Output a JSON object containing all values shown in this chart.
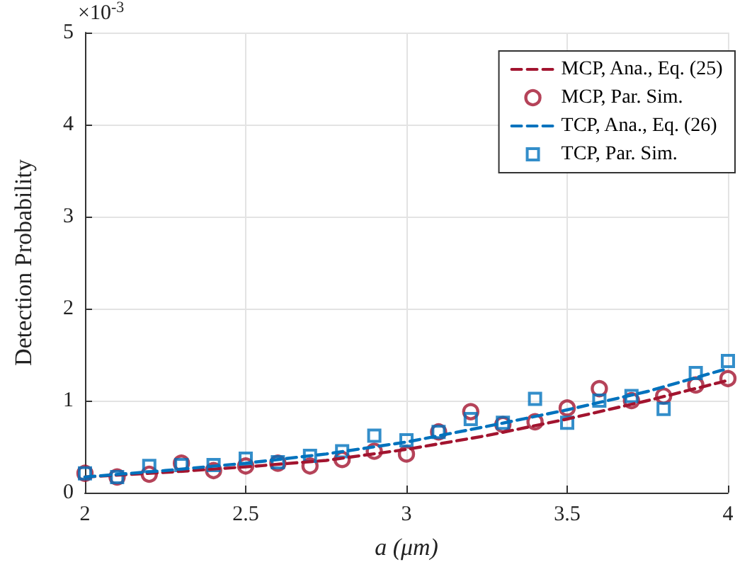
{
  "chart_data": {
    "type": "line",
    "xlabel": "a (μm)",
    "ylabel": "Detection Probability",
    "annotations": [
      "×10$^{-3}$"
    ],
    "xlim": [
      2,
      4
    ],
    "xticks": [
      2,
      2.5,
      3,
      3.5,
      4
    ],
    "ylim": [
      0,
      5
    ],
    "yticks": [
      0,
      1,
      2,
      3,
      4,
      5
    ],
    "grid": true,
    "legend": "top right",
    "series": [
      {
        "name": "MCP, Ana., Eq. (25)",
        "color": "#a2142f",
        "line_style": "dashed",
        "marker": "none",
        "x": [
          2,
          2.25,
          2.5,
          2.75,
          3,
          3.25,
          3.5,
          3.75,
          4
        ],
        "values": [
          0.17,
          0.22,
          0.28,
          0.35,
          0.47,
          0.62,
          0.8,
          1.0,
          1.22
        ]
      },
      {
        "name": "MCP, Par. Sim.",
        "type": "scatter",
        "color": "#a2142f",
        "marker": "circle",
        "x": [
          2,
          2.1,
          2.2,
          2.3,
          2.4,
          2.5,
          2.6,
          2.7,
          2.8,
          2.9,
          3,
          3.1,
          3.2,
          3.3,
          3.4,
          3.5,
          3.6,
          3.7,
          3.8,
          3.9,
          4
        ],
        "values": [
          0.21,
          0.17,
          0.2,
          0.32,
          0.24,
          0.29,
          0.32,
          0.29,
          0.36,
          0.45,
          0.42,
          0.66,
          0.88,
          0.74,
          0.77,
          0.92,
          1.13,
          1.0,
          1.05,
          1.17,
          1.24
        ]
      },
      {
        "name": "TCP, Ana., Eq. (26)",
        "color": "#0072bd",
        "line_style": "dashed",
        "marker": "none",
        "x": [
          2,
          2.25,
          2.5,
          2.75,
          3,
          3.25,
          3.5,
          3.75,
          4
        ],
        "values": [
          0.17,
          0.24,
          0.32,
          0.42,
          0.55,
          0.72,
          0.9,
          1.1,
          1.35
        ]
      },
      {
        "name": "TCP, Par. Sim.",
        "type": "scatter",
        "color": "#0072bd",
        "marker": "square",
        "x": [
          2,
          2.1,
          2.2,
          2.3,
          2.4,
          2.5,
          2.6,
          2.7,
          2.8,
          2.9,
          3,
          3.1,
          3.2,
          3.3,
          3.4,
          3.5,
          3.6,
          3.7,
          3.8,
          3.9,
          4
        ],
        "values": [
          0.21,
          0.17,
          0.29,
          0.3,
          0.3,
          0.37,
          0.33,
          0.4,
          0.45,
          0.62,
          0.57,
          0.66,
          0.8,
          0.76,
          1.02,
          0.76,
          1.0,
          1.05,
          0.91,
          1.3,
          1.43
        ]
      }
    ]
  }
}
